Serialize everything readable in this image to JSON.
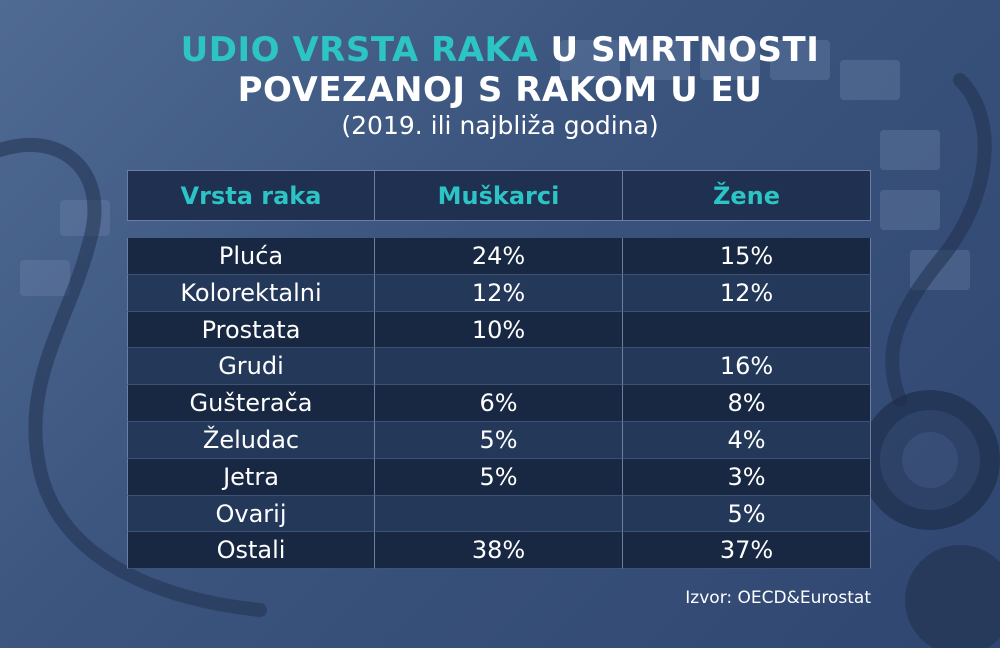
{
  "title": {
    "accent": "UDIO VRSTA RAKA",
    "line1_rest": " U SMRTNOSTI",
    "line2": "POVEZANOJ S RAKOM U EU",
    "subtitle": "(2019. ili najbliža godina)"
  },
  "table": {
    "headers": [
      "Vrsta raka",
      "Muškarci",
      "Žene"
    ],
    "rows": [
      [
        "Pluća",
        "24%",
        "15%"
      ],
      [
        "Kolorektalni",
        "12%",
        "12%"
      ],
      [
        "Prostata",
        "10%",
        ""
      ],
      [
        "Grudi",
        "",
        "16%"
      ],
      [
        "Gušterača",
        "6%",
        "8%"
      ],
      [
        "Želudac",
        "5%",
        "4%"
      ],
      [
        "Jetra",
        "5%",
        "3%"
      ],
      [
        "Ovarij",
        "",
        "5%"
      ],
      [
        "Ostali",
        "38%",
        "37%"
      ]
    ]
  },
  "source": "Izvor: OECD&Eurostat",
  "colors": {
    "accent": "#2cc4c4",
    "background": "#3b557f",
    "row_dark": "#182842",
    "row_light": "#24385a",
    "text": "#ffffff"
  }
}
